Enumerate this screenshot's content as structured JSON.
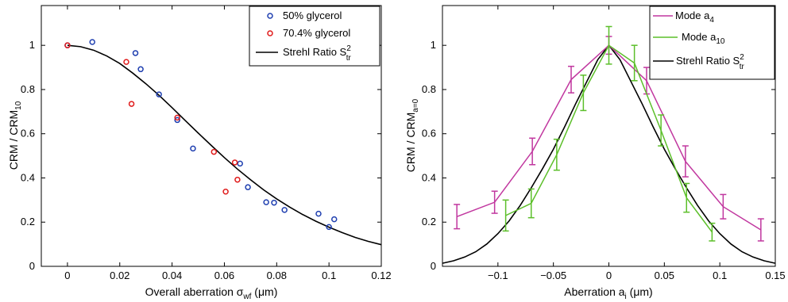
{
  "chart_data": [
    {
      "type": "scatter",
      "xlabel": "Overall aberration σ",
      "xlabel_sub": "wf",
      "xlabel_unit": " (μm)",
      "ylabel": "CRM / CRM",
      "ylabel_sub": "10",
      "xlim": [
        -0.01,
        0.12
      ],
      "ylim": [
        0,
        1.18
      ],
      "xticks": [
        "0",
        "0.02",
        "0.04",
        "0.06",
        "0.08",
        "0.1",
        "0.12"
      ],
      "yticks": [
        "0",
        "0.2",
        "0.4",
        "0.6",
        "0.8",
        "1"
      ],
      "xtick_values": [
        0,
        0.02,
        0.04,
        0.06,
        0.08,
        0.1,
        0.12
      ],
      "ytick_values": [
        0,
        0.2,
        0.4,
        0.6,
        0.8,
        1
      ],
      "legend_position": "top-right",
      "series": [
        {
          "name": "50% glycerol",
          "color": "#1f3fb0",
          "marker": "circle",
          "points": [
            [
              0,
              1.0
            ],
            [
              0.0095,
              1.015
            ],
            [
              0.026,
              0.965
            ],
            [
              0.028,
              0.892
            ],
            [
              0.035,
              0.778
            ],
            [
              0.042,
              0.662
            ],
            [
              0.048,
              0.533
            ],
            [
              0.066,
              0.465
            ],
            [
              0.069,
              0.358
            ],
            [
              0.076,
              0.29
            ],
            [
              0.079,
              0.288
            ],
            [
              0.083,
              0.255
            ],
            [
              0.096,
              0.238
            ],
            [
              0.1,
              0.178
            ],
            [
              0.102,
              0.213
            ]
          ]
        },
        {
          "name": "70.4% glycerol",
          "color": "#e01b1b",
          "marker": "circle",
          "points": [
            [
              0,
              1.0
            ],
            [
              0.0225,
              0.925
            ],
            [
              0.0245,
              0.735
            ],
            [
              0.042,
              0.673
            ],
            [
              0.056,
              0.518
            ],
            [
              0.0605,
              0.338
            ],
            [
              0.064,
              0.47
            ],
            [
              0.065,
              0.392
            ]
          ]
        }
      ],
      "curve": {
        "name": "Strehl Ratio S",
        "name_sup": "2",
        "name_sub": "tr",
        "color": "#000000",
        "x": [
          0,
          0.005,
          0.01,
          0.015,
          0.02,
          0.025,
          0.03,
          0.035,
          0.04,
          0.045,
          0.05,
          0.055,
          0.06,
          0.065,
          0.07,
          0.075,
          0.08,
          0.085,
          0.09,
          0.095,
          0.1,
          0.105,
          0.11,
          0.115,
          0.12
        ],
        "y": [
          1.0,
          0.994,
          0.978,
          0.952,
          0.918,
          0.874,
          0.826,
          0.774,
          0.718,
          0.66,
          0.603,
          0.547,
          0.492,
          0.44,
          0.392,
          0.346,
          0.305,
          0.268,
          0.234,
          0.204,
          0.177,
          0.153,
          0.131,
          0.113,
          0.098
        ]
      }
    },
    {
      "type": "line",
      "xlabel": "Aberration a",
      "xlabel_sub": "i",
      "xlabel_unit": " (μm)",
      "ylabel": "CRM / CRM",
      "ylabel_sub": "a=0",
      "xlim": [
        -0.15,
        0.15
      ],
      "ylim": [
        0,
        1.18
      ],
      "xticks": [
        "−0.1",
        "−0.05",
        "0",
        "0.05",
        "0.1",
        "0.15"
      ],
      "yticks": [
        "0",
        "0.2",
        "0.4",
        "0.6",
        "0.8",
        "1"
      ],
      "xtick_values": [
        -0.1,
        -0.05,
        0,
        0.05,
        0.1,
        0.15
      ],
      "ytick_values": [
        0,
        0.2,
        0.4,
        0.6,
        0.8,
        1
      ],
      "legend_position": "top-right",
      "series": [
        {
          "name": "Mode a",
          "name_sub": "4",
          "color": "#c1379f",
          "x": [
            -0.137,
            -0.103,
            -0.069,
            -0.034,
            0.0,
            0.034,
            0.069,
            0.103,
            0.137
          ],
          "y": [
            0.225,
            0.29,
            0.52,
            0.845,
            1.0,
            0.84,
            0.475,
            0.27,
            0.165
          ],
          "err": [
            0.055,
            0.05,
            0.06,
            0.06,
            0.04,
            0.06,
            0.07,
            0.055,
            0.05
          ]
        },
        {
          "name": "Mode a",
          "name_sub": "10",
          "color": "#5cbf2a",
          "x": [
            -0.093,
            -0.07,
            -0.047,
            -0.023,
            0.0,
            0.023,
            0.047,
            0.07,
            0.093
          ],
          "y": [
            0.23,
            0.285,
            0.505,
            0.785,
            1.0,
            0.92,
            0.615,
            0.31,
            0.155
          ],
          "err": [
            0.07,
            0.065,
            0.07,
            0.08,
            0.085,
            0.08,
            0.07,
            0.065,
            0.04
          ]
        }
      ],
      "curve": {
        "name": "Strehl Ratio S",
        "name_sup": "2",
        "name_sub": "tr",
        "color": "#000000",
        "x": [
          -0.15,
          -0.14,
          -0.13,
          -0.12,
          -0.11,
          -0.1,
          -0.09,
          -0.08,
          -0.07,
          -0.06,
          -0.05,
          -0.04,
          -0.03,
          -0.02,
          -0.01,
          0,
          0.01,
          0.02,
          0.03,
          0.04,
          0.05,
          0.06,
          0.07,
          0.08,
          0.09,
          0.1,
          0.11,
          0.12,
          0.13,
          0.14,
          0.15
        ],
        "y": [
          0.014,
          0.025,
          0.042,
          0.066,
          0.101,
          0.148,
          0.205,
          0.275,
          0.355,
          0.44,
          0.53,
          0.63,
          0.735,
          0.835,
          0.935,
          1.0,
          0.935,
          0.835,
          0.735,
          0.63,
          0.53,
          0.44,
          0.355,
          0.275,
          0.205,
          0.148,
          0.101,
          0.066,
          0.042,
          0.025,
          0.014
        ]
      }
    }
  ]
}
